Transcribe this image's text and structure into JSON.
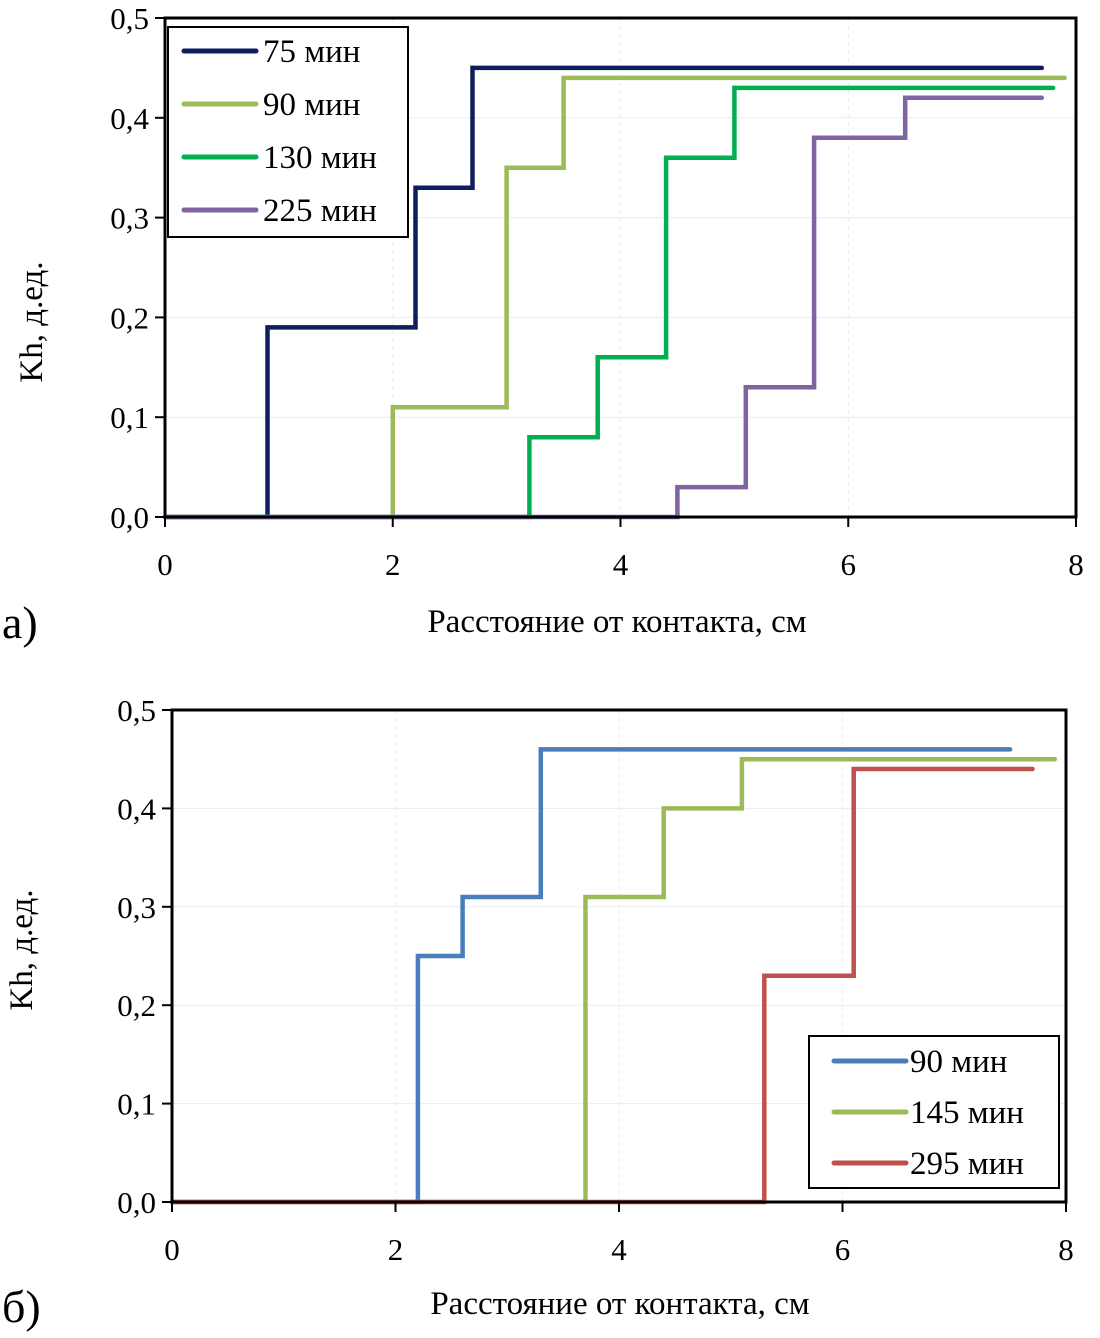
{
  "chart_data": [
    {
      "id": "a",
      "panel_label": "а)",
      "type": "line",
      "step": true,
      "title": "",
      "xlabel": "Расстояние от контакта, см",
      "ylabel": "Kh, д.ед.",
      "xlim": [
        0,
        8
      ],
      "ylim": [
        0,
        0.5
      ],
      "xticks": [
        0,
        2,
        4,
        6,
        8
      ],
      "xtick_labels": [
        "0",
        "2",
        "4",
        "6",
        "8"
      ],
      "yticks": [
        0,
        0.1,
        0.2,
        0.3,
        0.4,
        0.5
      ],
      "ytick_labels": [
        "0,0",
        "0,1",
        "0,2",
        "0,3",
        "0,4",
        "0,5"
      ],
      "grid": true,
      "legend_position": "top-left",
      "series": [
        {
          "name": "75 мин",
          "color": "#0d1f5c",
          "x": [
            0,
            0.9,
            0.9,
            2.2,
            2.2,
            2.7,
            2.7,
            7.7
          ],
          "y": [
            0,
            0,
            0.19,
            0.19,
            0.33,
            0.33,
            0.45,
            0.45
          ]
        },
        {
          "name": "90 мин",
          "color": "#9bbb59",
          "x": [
            0,
            2.0,
            2.0,
            3.0,
            3.0,
            3.5,
            3.5,
            7.9
          ],
          "y": [
            0,
            0,
            0.11,
            0.11,
            0.35,
            0.35,
            0.44,
            0.44
          ]
        },
        {
          "name": "130 мин",
          "color": "#00b050",
          "x": [
            0,
            3.2,
            3.2,
            3.8,
            3.8,
            4.4,
            4.4,
            5.0,
            5.0,
            7.8
          ],
          "y": [
            0,
            0,
            0.08,
            0.08,
            0.16,
            0.16,
            0.36,
            0.36,
            0.43,
            0.43
          ]
        },
        {
          "name": "225 мин",
          "color": "#8064a2",
          "x": [
            0,
            4.5,
            4.5,
            5.1,
            5.1,
            5.7,
            5.7,
            6.5,
            6.5,
            7.7
          ],
          "y": [
            0,
            0,
            0.03,
            0.03,
            0.13,
            0.13,
            0.38,
            0.38,
            0.42,
            0.42
          ]
        }
      ]
    },
    {
      "id": "b",
      "panel_label": "б)",
      "type": "line",
      "step": true,
      "title": "",
      "xlabel": "Расстояние от контакта, см",
      "ylabel": "Kh, д.ед.",
      "xlim": [
        0,
        8
      ],
      "ylim": [
        0,
        0.5
      ],
      "xticks": [
        0,
        2,
        4,
        6,
        8
      ],
      "xtick_labels": [
        "0",
        "2",
        "4",
        "6",
        "8"
      ],
      "yticks": [
        0,
        0.1,
        0.2,
        0.3,
        0.4,
        0.5
      ],
      "ytick_labels": [
        "0,0",
        "0,1",
        "0,2",
        "0,3",
        "0,4",
        "0,5"
      ],
      "grid": true,
      "legend_position": "bottom-right",
      "series": [
        {
          "name": "90 мин",
          "color": "#4a7ebb",
          "x": [
            0,
            2.2,
            2.2,
            2.6,
            2.6,
            3.3,
            3.3,
            7.5
          ],
          "y": [
            0,
            0,
            0.25,
            0.25,
            0.31,
            0.31,
            0.46,
            0.46
          ]
        },
        {
          "name": "145 мин",
          "color": "#9bbb59",
          "x": [
            0,
            3.7,
            3.7,
            4.4,
            4.4,
            5.1,
            5.1,
            7.9
          ],
          "y": [
            0,
            0,
            0.31,
            0.31,
            0.4,
            0.4,
            0.45,
            0.45
          ]
        },
        {
          "name": "295 мин",
          "color": "#c0504d",
          "x": [
            0,
            5.3,
            5.3,
            6.1,
            6.1,
            7.7
          ],
          "y": [
            0,
            0,
            0.23,
            0.23,
            0.44,
            0.44
          ]
        }
      ]
    }
  ]
}
